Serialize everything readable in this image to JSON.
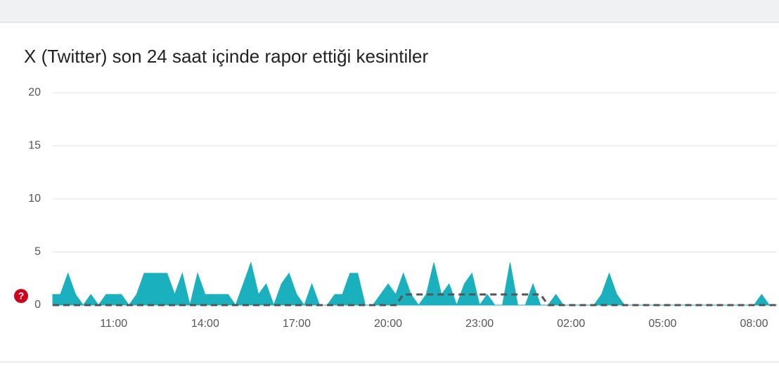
{
  "chart_data": {
    "type": "area",
    "title": "X (Twitter) son 24 saat içinde rapor ettiği kesintiler",
    "categories": [
      null,
      null,
      null,
      null,
      null,
      null,
      null,
      null,
      "11:00",
      null,
      null,
      null,
      null,
      null,
      null,
      null,
      null,
      null,
      null,
      null,
      "14:00",
      null,
      null,
      null,
      null,
      null,
      null,
      null,
      null,
      null,
      null,
      null,
      "17:00",
      null,
      null,
      null,
      null,
      null,
      null,
      null,
      null,
      null,
      null,
      null,
      "20:00",
      null,
      null,
      null,
      null,
      null,
      null,
      null,
      null,
      null,
      null,
      null,
      "23:00",
      null,
      null,
      null,
      null,
      null,
      null,
      null,
      null,
      null,
      null,
      null,
      "02:00",
      null,
      null,
      null,
      null,
      null,
      null,
      null,
      null,
      null,
      null,
      null,
      "05:00",
      null,
      null,
      null,
      null,
      null,
      null,
      null,
      null,
      null,
      null,
      null,
      "08:00",
      null,
      null,
      null
    ],
    "series": [
      {
        "color": "#1ab0be",
        "values": [
          1,
          1,
          3,
          1,
          0,
          1,
          0,
          1,
          1,
          1,
          0,
          1,
          3,
          3,
          3,
          3,
          1,
          3,
          0,
          3,
          1,
          1,
          1,
          1,
          0,
          2,
          4,
          1,
          2,
          0,
          2,
          3,
          1,
          0,
          2,
          0,
          0,
          1,
          1,
          3,
          3,
          0,
          0,
          1,
          2,
          1,
          3,
          1,
          0,
          1,
          4,
          1,
          2,
          0,
          2,
          3,
          0,
          1,
          0,
          0,
          4,
          0,
          0,
          2,
          0,
          0,
          1,
          0,
          0,
          0,
          0,
          0,
          1,
          3,
          1,
          0,
          0,
          0,
          0,
          0,
          0,
          0,
          0,
          0,
          0,
          0,
          0,
          0,
          0,
          0,
          0,
          0,
          0,
          1,
          0,
          0
        ]
      },
      {
        "color": "#555555",
        "dashed": true,
        "values": [
          0,
          0,
          0,
          0,
          0,
          0,
          0,
          0,
          0,
          0,
          0,
          0,
          0,
          0,
          0,
          0,
          0,
          0,
          0,
          0,
          0,
          0,
          0,
          0,
          0,
          0,
          0,
          0,
          0,
          0,
          0,
          0,
          0,
          0,
          0,
          0,
          0,
          0,
          0,
          0,
          0,
          0,
          0,
          0,
          0,
          0,
          1,
          1,
          1,
          1,
          1,
          1,
          1,
          1,
          1,
          1,
          1,
          1,
          1,
          1,
          1,
          1,
          1,
          1,
          1,
          0,
          0,
          0,
          0,
          0,
          0,
          0,
          0,
          0,
          0,
          0,
          0,
          0,
          0,
          0,
          0,
          0,
          0,
          0,
          0,
          0,
          0,
          0,
          0,
          0,
          0,
          0,
          0,
          0,
          0,
          0
        ]
      }
    ],
    "ylim": [
      0,
      20
    ],
    "yticks": [
      0,
      5,
      10,
      15,
      20
    ],
    "grid": true
  }
}
